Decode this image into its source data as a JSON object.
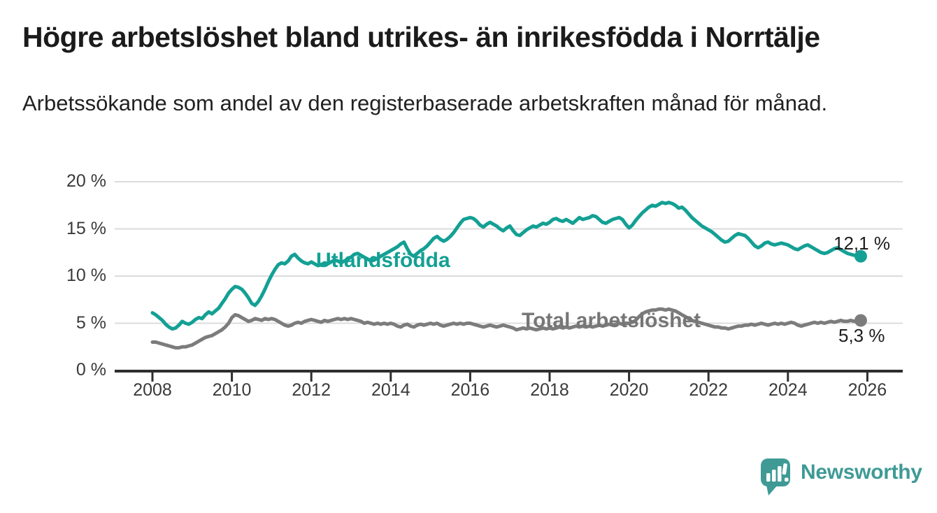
{
  "header": {
    "title": "Högre arbetslöshet bland utrikes- än inrikesfödda i Norrtälje",
    "subtitle": "Arbetssökande som andel av den registerbaserade arbetskraften månad för månad."
  },
  "footer": {
    "brand": "Newsworthy",
    "brand_color": "#3f9a96",
    "logo_icon": "speech-bubble-bar-chart-icon"
  },
  "colors": {
    "background": "#ffffff",
    "gridline": "#dcdcdc",
    "axis": "#2e2e2e",
    "axis_text": "#3a3a3a",
    "value_label_text": "#1d1d1d"
  },
  "chart_data": {
    "type": "line",
    "title": "Högre arbetslöshet bland utrikes- än inrikesfödda i Norrtälje",
    "subtitle": "Arbetssökande som andel av den registerbaserade arbetskraften månad för månad.",
    "xlabel": "",
    "ylabel": "",
    "grid": "horizontal",
    "legend": "inline-labels-on-lines",
    "x_start_year": 2008,
    "points_per_year": 12,
    "x_axis": {
      "ticks": [
        {
          "value": 2008,
          "label": "2008"
        },
        {
          "value": 2010,
          "label": "2010"
        },
        {
          "value": 2012,
          "label": "2012"
        },
        {
          "value": 2014,
          "label": "2014"
        },
        {
          "value": 2016,
          "label": "2016"
        },
        {
          "value": 2018,
          "label": "2018"
        },
        {
          "value": 2020,
          "label": "2020"
        },
        {
          "value": 2022,
          "label": "2022"
        },
        {
          "value": 2024,
          "label": "2024"
        },
        {
          "value": 2026,
          "label": "2026"
        }
      ]
    },
    "y_axis": {
      "unit": "%",
      "range": [
        0,
        20
      ],
      "ticks": [
        {
          "value": 20,
          "label": "20 %"
        },
        {
          "value": 15,
          "label": "15 %"
        },
        {
          "value": 10,
          "label": "10 %"
        },
        {
          "value": 5,
          "label": "5 %"
        },
        {
          "value": 0,
          "label": "0 %"
        }
      ]
    },
    "series": [
      {
        "name": "Utlandsfödda",
        "color": "#14a094",
        "end_label": "12,1 %",
        "last_value": 12.1,
        "values": [
          6.1,
          5.9,
          5.6,
          5.3,
          4.9,
          4.6,
          4.4,
          4.5,
          4.8,
          5.2,
          5.0,
          4.9,
          5.1,
          5.4,
          5.6,
          5.5,
          5.9,
          6.2,
          6.0,
          6.3,
          6.6,
          7.1,
          7.6,
          8.2,
          8.6,
          8.9,
          8.8,
          8.6,
          8.2,
          7.7,
          7.1,
          6.9,
          7.3,
          7.9,
          8.6,
          9.4,
          10.1,
          10.7,
          11.2,
          11.4,
          11.3,
          11.6,
          12.1,
          12.3,
          11.9,
          11.6,
          11.4,
          11.3,
          11.5,
          11.3,
          11.1,
          11.2,
          11.4,
          11.3,
          11.5,
          11.7,
          11.6,
          11.4,
          11.6,
          11.8,
          12.0,
          12.3,
          12.4,
          12.2,
          12.0,
          11.8,
          11.6,
          11.7,
          11.9,
          12.1,
          12.3,
          12.5,
          12.7,
          12.9,
          13.1,
          13.4,
          13.6,
          12.9,
          12.3,
          12.1,
          12.4,
          12.7,
          12.9,
          13.2,
          13.6,
          14.0,
          14.2,
          13.9,
          13.7,
          13.9,
          14.2,
          14.6,
          15.1,
          15.6,
          16.0,
          16.1,
          16.2,
          16.1,
          15.8,
          15.4,
          15.2,
          15.5,
          15.7,
          15.5,
          15.3,
          15.0,
          14.8,
          15.1,
          15.3,
          14.8,
          14.4,
          14.3,
          14.6,
          14.9,
          15.1,
          15.3,
          15.2,
          15.4,
          15.6,
          15.5,
          15.7,
          16.0,
          16.1,
          15.9,
          15.8,
          16.0,
          15.8,
          15.6,
          15.9,
          16.2,
          16.0,
          16.1,
          16.2,
          16.4,
          16.3,
          16.0,
          15.7,
          15.6,
          15.8,
          16.0,
          16.1,
          16.2,
          16.0,
          15.5,
          15.1,
          15.4,
          15.9,
          16.3,
          16.7,
          17.0,
          17.3,
          17.5,
          17.4,
          17.6,
          17.8,
          17.7,
          17.8,
          17.7,
          17.5,
          17.2,
          17.3,
          17.0,
          16.6,
          16.2,
          15.9,
          15.6,
          15.3,
          15.1,
          14.9,
          14.7,
          14.4,
          14.1,
          13.8,
          13.6,
          13.7,
          14.0,
          14.3,
          14.5,
          14.4,
          14.3,
          14.0,
          13.6,
          13.2,
          13.0,
          13.2,
          13.5,
          13.6,
          13.4,
          13.3,
          13.4,
          13.5,
          13.4,
          13.3,
          13.1,
          12.9,
          12.8,
          13.0,
          13.2,
          13.3,
          13.1,
          12.9,
          12.7,
          12.5,
          12.4,
          12.5,
          12.7,
          12.9,
          13.0,
          12.8,
          12.6,
          12.4,
          12.3,
          12.2,
          12.2,
          12.1
        ]
      },
      {
        "name": "Total arbetslöshet",
        "color": "#7c7c7c",
        "label_color": "#767676",
        "end_label": "5,3 %",
        "last_value": 5.3,
        "values": [
          3.0,
          3.0,
          2.9,
          2.8,
          2.7,
          2.6,
          2.5,
          2.4,
          2.4,
          2.5,
          2.5,
          2.6,
          2.7,
          2.9,
          3.1,
          3.3,
          3.5,
          3.6,
          3.7,
          3.9,
          4.1,
          4.3,
          4.6,
          5.0,
          5.6,
          5.9,
          5.8,
          5.6,
          5.4,
          5.2,
          5.3,
          5.5,
          5.4,
          5.3,
          5.5,
          5.4,
          5.5,
          5.4,
          5.2,
          5.0,
          4.8,
          4.7,
          4.8,
          5.0,
          5.1,
          5.0,
          5.2,
          5.3,
          5.4,
          5.3,
          5.2,
          5.1,
          5.3,
          5.2,
          5.3,
          5.4,
          5.5,
          5.4,
          5.5,
          5.4,
          5.5,
          5.4,
          5.3,
          5.2,
          5.0,
          5.1,
          5.0,
          4.9,
          5.0,
          4.9,
          5.0,
          4.9,
          5.0,
          4.9,
          4.7,
          4.6,
          4.8,
          4.9,
          4.7,
          4.6,
          4.8,
          4.9,
          4.8,
          4.9,
          5.0,
          4.9,
          5.0,
          4.8,
          4.7,
          4.8,
          4.9,
          5.0,
          4.9,
          5.0,
          4.9,
          5.0,
          5.0,
          4.9,
          4.8,
          4.7,
          4.6,
          4.7,
          4.8,
          4.7,
          4.6,
          4.7,
          4.8,
          4.7,
          4.6,
          4.5,
          4.3,
          4.4,
          4.5,
          4.4,
          4.5,
          4.4,
          4.3,
          4.4,
          4.5,
          4.4,
          4.5,
          4.4,
          4.5,
          4.6,
          4.5,
          4.6,
          4.5,
          4.6,
          4.7,
          4.6,
          4.7,
          4.6,
          4.7,
          4.6,
          4.7,
          4.8,
          4.7,
          4.8,
          4.9,
          4.8,
          4.9,
          5.0,
          4.9,
          5.0,
          5.0,
          5.1,
          5.3,
          5.7,
          6.0,
          6.2,
          6.3,
          6.4,
          6.4,
          6.5,
          6.5,
          6.4,
          6.5,
          6.4,
          6.3,
          6.1,
          5.9,
          5.7,
          5.5,
          5.3,
          5.2,
          5.1,
          5.0,
          4.9,
          4.8,
          4.7,
          4.6,
          4.6,
          4.5,
          4.5,
          4.4,
          4.5,
          4.6,
          4.7,
          4.7,
          4.8,
          4.8,
          4.9,
          4.8,
          4.9,
          5.0,
          4.9,
          4.8,
          4.9,
          5.0,
          4.9,
          5.0,
          4.9,
          5.0,
          5.1,
          5.0,
          4.8,
          4.7,
          4.8,
          4.9,
          5.0,
          5.1,
          5.0,
          5.1,
          5.0,
          5.1,
          5.2,
          5.1,
          5.2,
          5.3,
          5.2,
          5.2,
          5.3,
          5.2,
          5.3,
          5.3
        ]
      }
    ]
  }
}
